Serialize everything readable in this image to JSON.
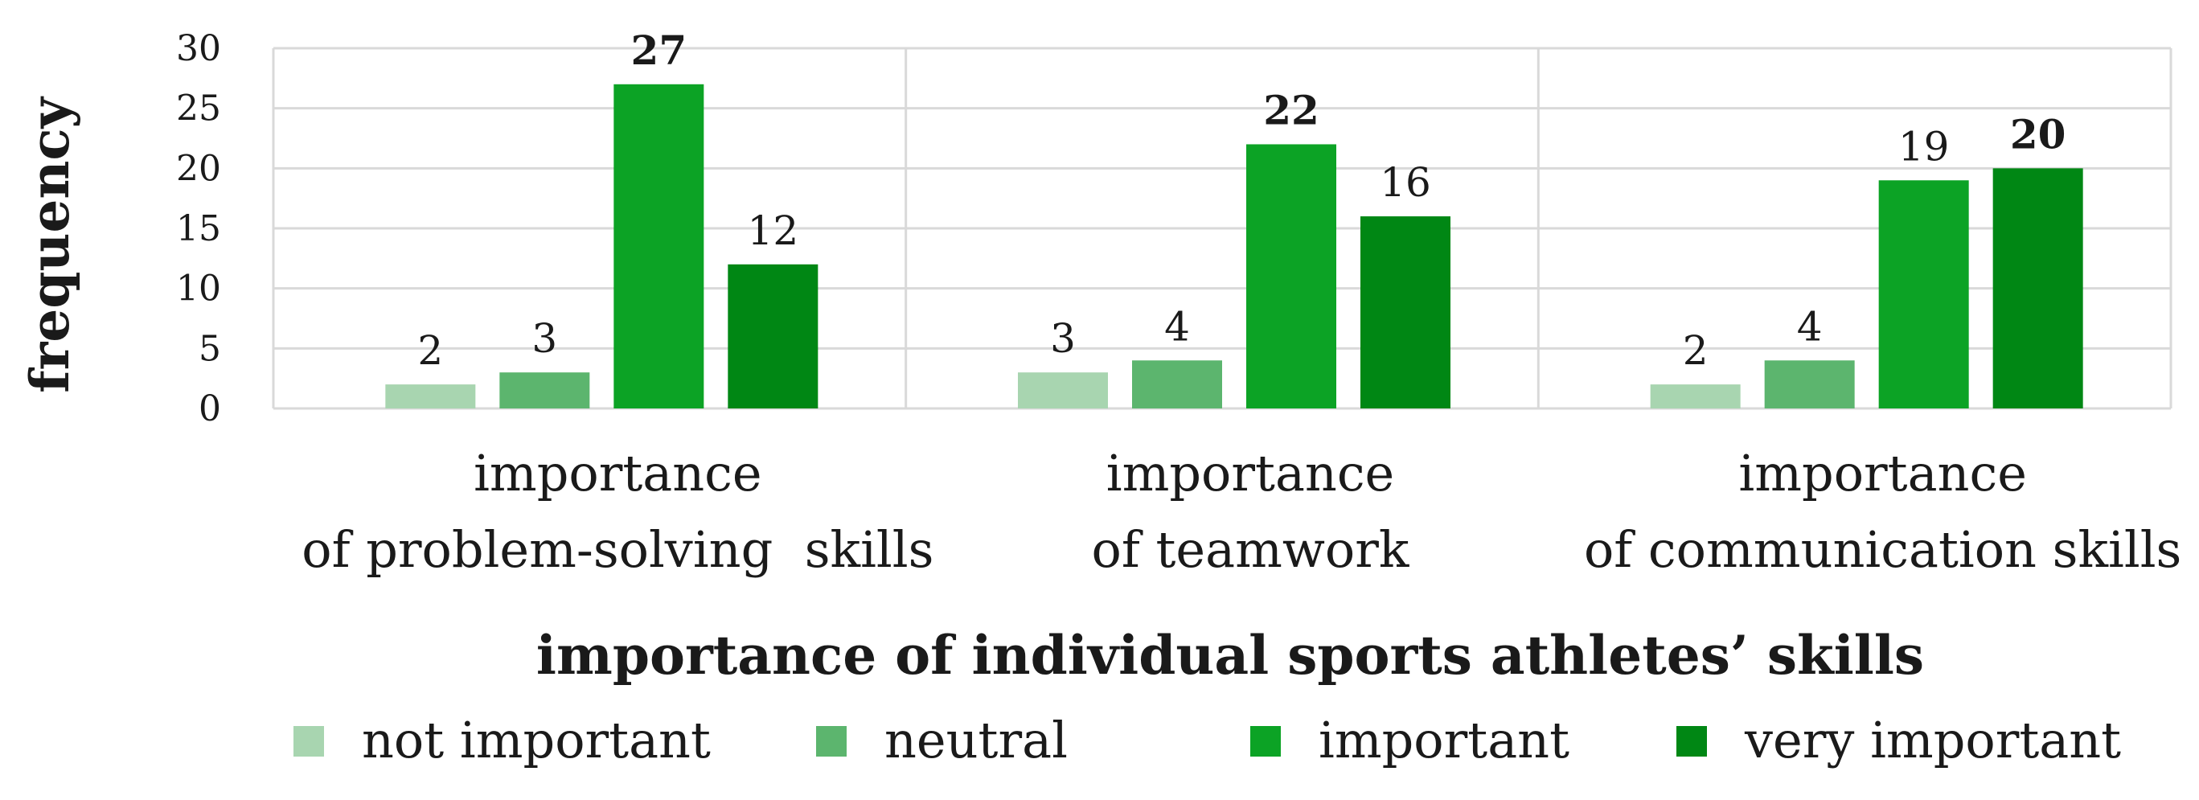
{
  "chart_data": {
    "type": "bar",
    "ylabel": "frequency",
    "xlabel": "importance of individual sports athletes’ skills",
    "ylim": [
      0,
      30
    ],
    "yticks": [
      0,
      5,
      10,
      15,
      20,
      25,
      30
    ],
    "grid": true,
    "legend_position": "bottom",
    "categories": [
      {
        "line1": "importance",
        "line2": "of problem-solving  skills"
      },
      {
        "line1": "importance",
        "line2": "of teamwork"
      },
      {
        "line1": "importance",
        "line2": "of communication skills"
      }
    ],
    "series": [
      {
        "name": "not important",
        "color": "#a8d5b0",
        "values": [
          2,
          3,
          2
        ]
      },
      {
        "name": "neutral",
        "color": "#5cb56e",
        "values": [
          3,
          4,
          4
        ]
      },
      {
        "name": "important",
        "color": "#0ca325",
        "values": [
          27,
          22,
          19
        ]
      },
      {
        "name": "very important",
        "color": "#008714",
        "values": [
          12,
          16,
          20
        ]
      }
    ],
    "bold_max_label": true
  }
}
